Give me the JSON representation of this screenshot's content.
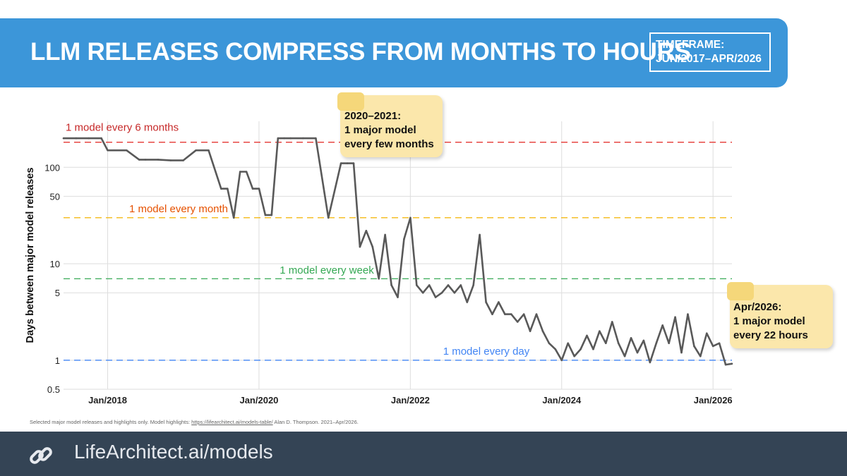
{
  "header": {
    "title": "LLM RELEASES COMPRESS FROM MONTHS TO HOURS",
    "timeframe_line1": "TIMEFRAME:",
    "timeframe_line2": "JUN/2017–APR/2026"
  },
  "source": {
    "prefix": "Selected major model releases and highlights only. Model highlights:",
    "link": "https://lifearchitect.ai/models-table/",
    "suffix": "Alan D. Thompson. 2021–Apr/2026."
  },
  "footer": {
    "icon": "link-icon",
    "text": "LifeArchitect.ai/models"
  },
  "annotations": [
    {
      "line1": "2020–2021:",
      "line2": "1 major model",
      "line3": "every few months"
    },
    {
      "line1": "Apr/2026:",
      "line2": "1 major model",
      "line3": "every 22 hours"
    }
  ],
  "colors": {
    "banner": "#3c96d9",
    "footer": "#344455",
    "series": "#595959",
    "note": "#fbe7ab",
    "note_fold": "#f5d77a"
  },
  "chart_data": {
    "type": "line",
    "title": "",
    "xlabel": "",
    "ylabel": "Days between major model releases",
    "yscale": "log",
    "ylim": [
      0.5,
      300
    ],
    "xlim": [
      "2017-06",
      "2026-04"
    ],
    "x_ticks": [
      "Jan/2018",
      "Jan/2020",
      "Jan/2022",
      "Jan/2024",
      "Jan/2026"
    ],
    "y_ticks": [
      "0.5",
      "1",
      "5",
      "10",
      "50",
      "100"
    ],
    "y_tick_values": [
      0.5,
      1,
      5,
      10,
      50,
      100
    ],
    "grid": true,
    "reference_lines": [
      {
        "label": "1 model every 6 months",
        "value": 182,
        "color": "#e53935"
      },
      {
        "label": "1 model every month",
        "value": 30,
        "color": "#f4b400"
      },
      {
        "label": "1 model every week",
        "value": 7,
        "color": "#34a853"
      },
      {
        "label": "1 model every day",
        "value": 1,
        "color": "#4285f4"
      }
    ],
    "series": [
      {
        "x": [
          "2017-06",
          "2017-08",
          "2017-10",
          "2017-12",
          "2018-01",
          "2018-02",
          "2018-04",
          "2018-06",
          "2018-07",
          "2018-09",
          "2018-11",
          "2019-01",
          "2019-03",
          "2019-05",
          "2019-07",
          "2019-08",
          "2019-09",
          "2019-10",
          "2019-11",
          "2019-12",
          "2020-01",
          "2020-02",
          "2020-03",
          "2020-04",
          "2020-05",
          "2020-06",
          "2020-08",
          "2020-10",
          "2020-12",
          "2021-02",
          "2021-03",
          "2021-04",
          "2021-05",
          "2021-06",
          "2021-07",
          "2021-08",
          "2021-09",
          "2021-10",
          "2021-11",
          "2021-12",
          "2022-01",
          "2022-02",
          "2022-03",
          "2022-04",
          "2022-05",
          "2022-06",
          "2022-07",
          "2022-08",
          "2022-09",
          "2022-10",
          "2022-11",
          "2022-12",
          "2023-01",
          "2023-02",
          "2023-03",
          "2023-04",
          "2023-05",
          "2023-06",
          "2023-07",
          "2023-08",
          "2023-09",
          "2023-10",
          "2023-11",
          "2023-12",
          "2024-01",
          "2024-02",
          "2024-03",
          "2024-04",
          "2024-05",
          "2024-06",
          "2024-07",
          "2024-08",
          "2024-09",
          "2024-10",
          "2024-11",
          "2024-12",
          "2025-01",
          "2025-02",
          "2025-03",
          "2025-04",
          "2025-05",
          "2025-06",
          "2025-07",
          "2025-08",
          "2025-09",
          "2025-10",
          "2025-11",
          "2025-12",
          "2026-01",
          "2026-02",
          "2026-03",
          "2026-04"
        ],
        "values": [
          200,
          200,
          200,
          200,
          150,
          150,
          150,
          120,
          120,
          120,
          118,
          118,
          150,
          150,
          60,
          60,
          30,
          90,
          90,
          60,
          60,
          32,
          32,
          200,
          200,
          200,
          200,
          200,
          30,
          110,
          110,
          110,
          15,
          22,
          15,
          7,
          20,
          6,
          4.5,
          18,
          30,
          6,
          5,
          6,
          4.5,
          5,
          6,
          5,
          6,
          4,
          6,
          20,
          4,
          3,
          4,
          3,
          3,
          2.5,
          3,
          2,
          3,
          2,
          1.5,
          1.3,
          1,
          1.5,
          1.1,
          1.3,
          1.8,
          1.3,
          2,
          1.5,
          2.5,
          1.5,
          1.1,
          1.7,
          1.2,
          1.6,
          0.95,
          1.5,
          2.3,
          1.5,
          2.8,
          1.2,
          3,
          1.4,
          1.1,
          1.9,
          1.4,
          1.5,
          0.9,
          0.92
        ]
      }
    ]
  }
}
